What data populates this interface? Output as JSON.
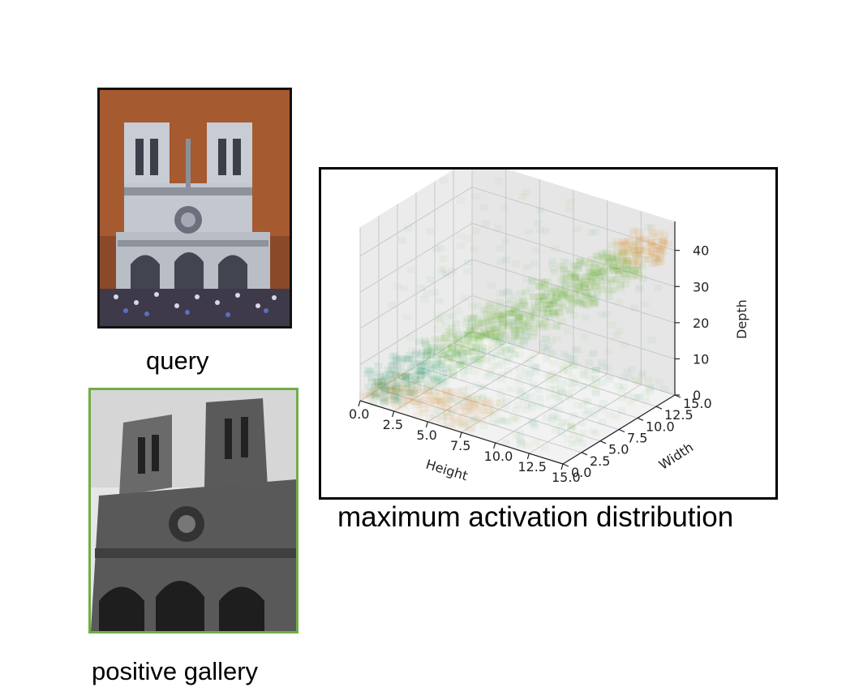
{
  "figure": {
    "query_caption": "query",
    "gallery_caption": "positive gallery",
    "plot_caption": "maximum activation distribution",
    "query_bg_color": "#a85f36",
    "gallery_border_color": "#70ad47"
  },
  "chart_data": {
    "type": "scatter",
    "projection": "3d",
    "title": "",
    "xlabel": "Height",
    "ylabel": "Width",
    "zlabel": "Depth",
    "x_ticks": [
      "0.0",
      "2.5",
      "5.0",
      "7.5",
      "10.0",
      "12.5",
      "15.0"
    ],
    "y_ticks": [
      "0.0",
      "2.5",
      "5.0",
      "7.5",
      "10.0",
      "12.5",
      "15.0"
    ],
    "z_ticks": [
      "0",
      "10",
      "20",
      "30",
      "40"
    ],
    "xlim": [
      0,
      15
    ],
    "ylim": [
      0,
      15
    ],
    "zlim": [
      0,
      48
    ],
    "grid": true,
    "colors": {
      "low": "#2ca06e",
      "mid": "#5fb32c",
      "high": "#d9922e"
    },
    "description_of_density": "diagonal ridge from (0,0,0) to (15,15,45)"
  }
}
